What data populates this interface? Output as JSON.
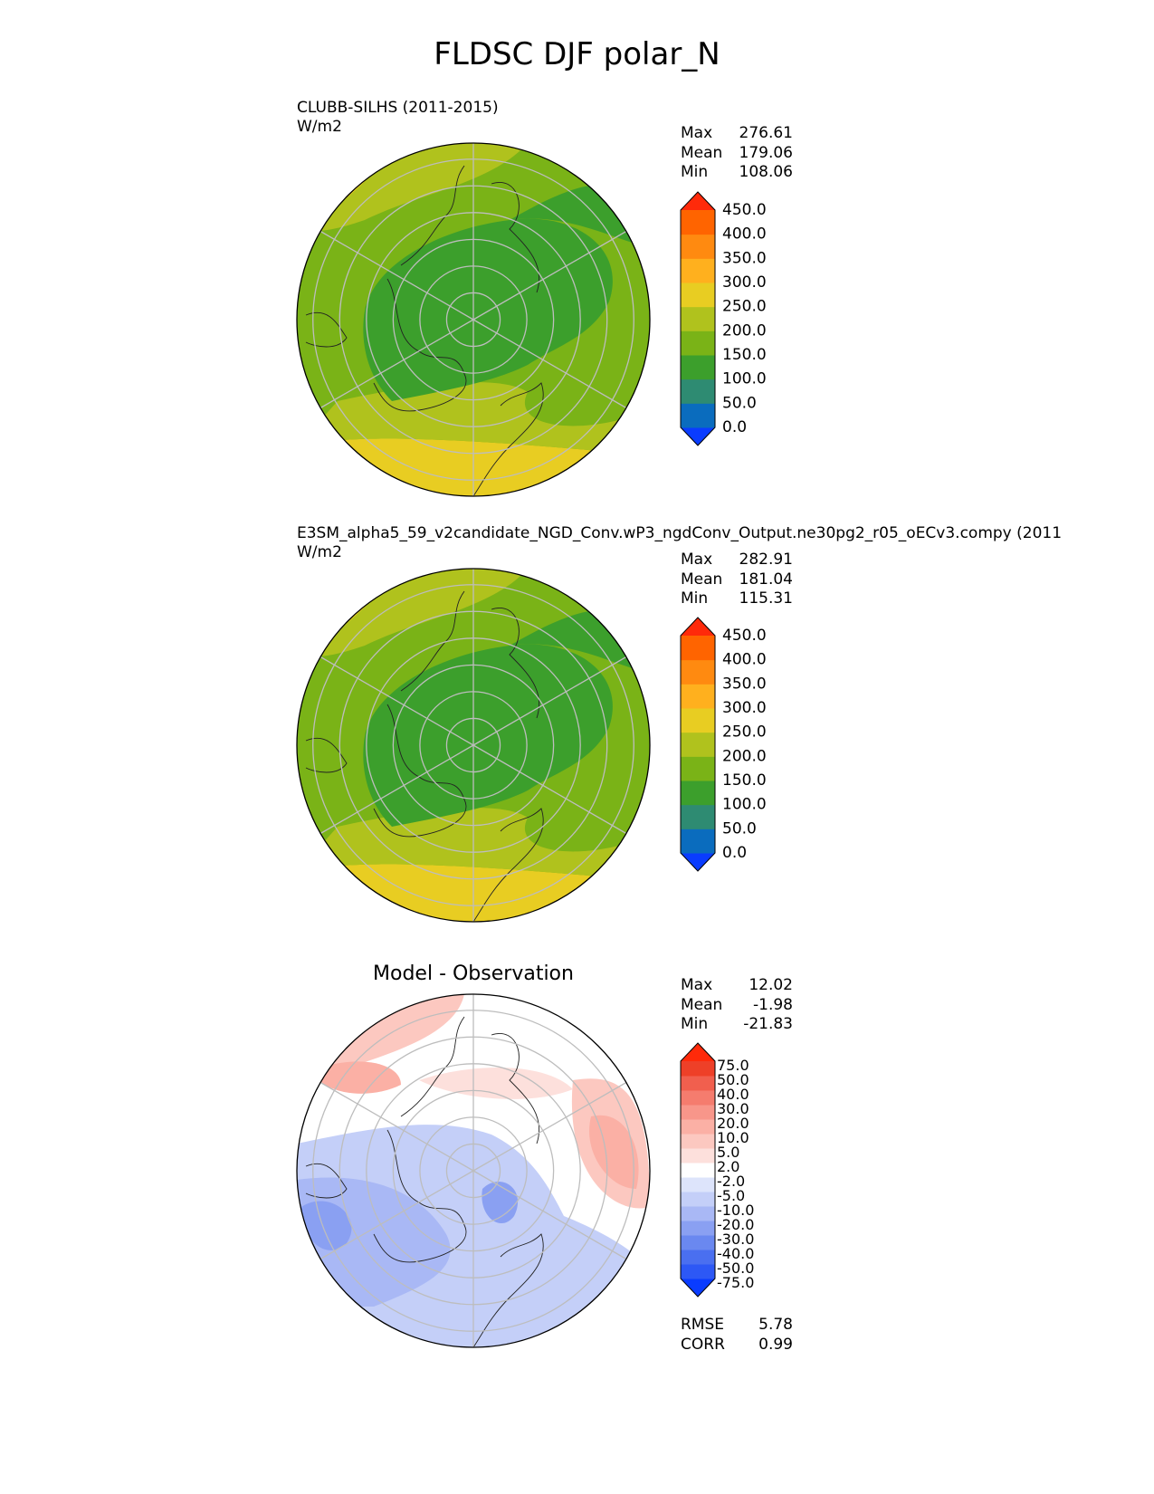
{
  "figure_title": "FLDSC DJF polar_N",
  "panels": [
    {
      "title": "CLUBB-SILHS (2011-2015)",
      "units": "W/m2",
      "stats": {
        "max_label": "Max",
        "max": "276.61",
        "mean_label": "Mean",
        "mean": "179.06",
        "min_label": "Min",
        "min": "108.06"
      },
      "colorbar": {
        "levels": [
          "0.0",
          "50.0",
          "100.0",
          "150.0",
          "200.0",
          "250.0",
          "300.0",
          "350.0",
          "400.0",
          "450.0"
        ],
        "colors": [
          "#0a3cff",
          "#0a6cbe",
          "#2e8b72",
          "#3c9f2c",
          "#7ab317",
          "#b0c21d",
          "#e8cd22",
          "#ffb01e",
          "#ff8a10",
          "#ff6400",
          "#ff2a0a"
        ]
      }
    },
    {
      "title": "E3SM_alpha5_59_v2candidate_NGD_Conv.wP3_ngdConv_Output.ne30pg2_r05_oECv3.compy (2011",
      "units": "W/m2",
      "stats": {
        "max_label": "Max",
        "max": "282.91",
        "mean_label": "Mean",
        "mean": "181.04",
        "min_label": "Min",
        "min": "115.31"
      },
      "colorbar": {
        "levels": [
          "0.0",
          "50.0",
          "100.0",
          "150.0",
          "200.0",
          "250.0",
          "300.0",
          "350.0",
          "400.0",
          "450.0"
        ],
        "colors": [
          "#0a3cff",
          "#0a6cbe",
          "#2e8b72",
          "#3c9f2c",
          "#7ab317",
          "#b0c21d",
          "#e8cd22",
          "#ffb01e",
          "#ff8a10",
          "#ff6400",
          "#ff2a0a"
        ]
      }
    },
    {
      "title": "Model - Observation",
      "stats": {
        "max_label": "Max",
        "max": "12.02",
        "mean_label": "Mean",
        "mean": "-1.98",
        "min_label": "Min",
        "min": "-21.83"
      },
      "colorbar": {
        "levels": [
          "-75.0",
          "-50.0",
          "-40.0",
          "-30.0",
          "-20.0",
          "-10.0",
          "-5.0",
          "-2.0",
          "2.0",
          "5.0",
          "10.0",
          "20.0",
          "30.0",
          "40.0",
          "50.0",
          "75.0"
        ],
        "colors": [
          "#0a3cff",
          "#2d58f5",
          "#4a6ff0",
          "#6a88f0",
          "#8aa0f2",
          "#a9b8f5",
          "#c4cff8",
          "#dde4fb",
          "#ffffff",
          "#fde0dc",
          "#fcc8c0",
          "#fbb0a5",
          "#f8968a",
          "#f57c6e",
          "#f15f4e",
          "#ee4028",
          "#ff2a0a"
        ]
      },
      "metrics": {
        "rmse_label": "RMSE",
        "rmse": "5.78",
        "corr_label": "CORR",
        "corr": "0.99"
      }
    }
  ],
  "chart_data": [
    {
      "type": "heatmap",
      "projection": "polar stereographic (north)",
      "title": "CLUBB-SILHS (2011-2015)",
      "units": "W/m2",
      "variable": "FLDSC",
      "season": "DJF",
      "max": 276.61,
      "mean": 179.06,
      "min": 108.06,
      "contour_levels": [
        0,
        50,
        100,
        150,
        200,
        250,
        300,
        350,
        400,
        450
      ]
    },
    {
      "type": "heatmap",
      "projection": "polar stereographic (north)",
      "title": "E3SM_alpha5_59_v2candidate_NGD_Conv.wP3_ngdConv_Output.ne30pg2_r05_oECv3.compy (2011",
      "units": "W/m2",
      "max": 282.91,
      "mean": 181.04,
      "min": 115.31,
      "contour_levels": [
        0,
        50,
        100,
        150,
        200,
        250,
        300,
        350,
        400,
        450
      ]
    },
    {
      "type": "heatmap",
      "projection": "polar stereographic (north)",
      "title": "Model - Observation",
      "max": 12.02,
      "mean": -1.98,
      "min": -21.83,
      "rmse": 5.78,
      "corr": 0.99,
      "contour_levels": [
        -75,
        -50,
        -40,
        -30,
        -20,
        -10,
        -5,
        -2,
        2,
        5,
        10,
        20,
        30,
        40,
        50,
        75
      ]
    }
  ]
}
